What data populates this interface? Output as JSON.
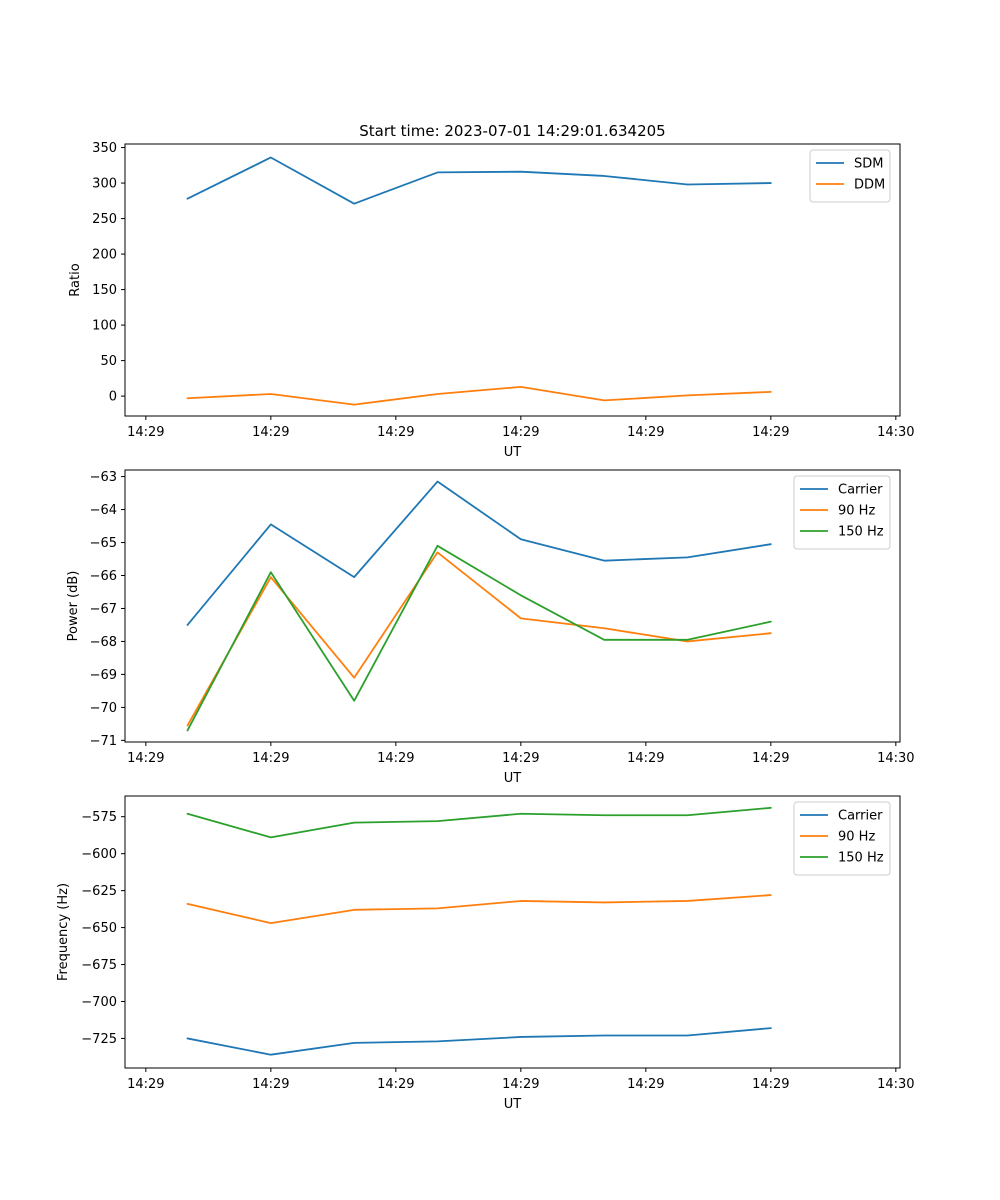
{
  "chart_data": [
    {
      "type": "line",
      "title": "Start time: 2023-07-01 14:29:01.634205",
      "xlabel": "UT",
      "ylabel": "Ratio",
      "xlim": [
        -0.75,
        8.55
      ],
      "ylim": [
        -28,
        355
      ],
      "x": [
        0,
        1,
        2,
        3,
        4,
        5,
        6,
        7
      ],
      "xticks": [
        -0.5,
        1,
        2.5,
        4,
        5.5,
        7,
        8.5
      ],
      "xtick_labels": [
        "14:29",
        "14:29",
        "14:29",
        "14:29",
        "14:29",
        "14:29",
        "14:30"
      ],
      "yticks": [
        0,
        50,
        100,
        150,
        200,
        250,
        300,
        350
      ],
      "ytick_labels": [
        "0",
        "50",
        "100",
        "150",
        "200",
        "250",
        "300",
        "350"
      ],
      "legend": "top-right",
      "series": [
        {
          "name": "SDM",
          "color": "#1f77b4",
          "values": [
            278,
            336,
            271,
            315,
            316,
            310,
            298,
            300
          ]
        },
        {
          "name": "DDM",
          "color": "#ff7f0e",
          "values": [
            -3,
            3,
            -12,
            3,
            13,
            -6,
            1,
            6
          ]
        }
      ]
    },
    {
      "type": "line",
      "title": "",
      "xlabel": "UT",
      "ylabel": "Power (dB)",
      "xlim": [
        -0.75,
        8.55
      ],
      "ylim": [
        -71.05,
        -62.8
      ],
      "x": [
        0,
        1,
        2,
        3,
        4,
        5,
        6,
        7
      ],
      "xticks": [
        -0.5,
        1,
        2.5,
        4,
        5.5,
        7,
        8.5
      ],
      "xtick_labels": [
        "14:29",
        "14:29",
        "14:29",
        "14:29",
        "14:29",
        "14:29",
        "14:30"
      ],
      "yticks": [
        -71,
        -70,
        -69,
        -68,
        -67,
        -66,
        -65,
        -64,
        -63
      ],
      "ytick_labels": [
        "−71",
        "−70",
        "−69",
        "−68",
        "−67",
        "−66",
        "−65",
        "−64",
        "−63"
      ],
      "legend": "top-right",
      "series": [
        {
          "name": "Carrier",
          "color": "#1f77b4",
          "values": [
            -67.5,
            -64.45,
            -66.05,
            -63.15,
            -64.9,
            -65.55,
            -65.45,
            -65.05
          ]
        },
        {
          "name": "90 Hz",
          "color": "#ff7f0e",
          "values": [
            -70.55,
            -66.05,
            -69.1,
            -65.3,
            -67.3,
            -67.6,
            -68.0,
            -67.75
          ]
        },
        {
          "name": "150 Hz",
          "color": "#2ca02c",
          "values": [
            -70.7,
            -65.9,
            -69.8,
            -65.1,
            -66.6,
            -67.95,
            -67.95,
            -67.4
          ]
        }
      ]
    },
    {
      "type": "line",
      "title": "",
      "xlabel": "UT",
      "ylabel": "Frequency (Hz)",
      "xlim": [
        -0.75,
        8.55
      ],
      "ylim": [
        -745,
        -561
      ],
      "x": [
        0,
        1,
        2,
        3,
        4,
        5,
        6,
        7
      ],
      "xticks": [
        -0.5,
        1,
        2.5,
        4,
        5.5,
        7,
        8.5
      ],
      "xtick_labels": [
        "14:29",
        "14:29",
        "14:29",
        "14:29",
        "14:29",
        "14:29",
        "14:30"
      ],
      "yticks": [
        -725,
        -700,
        -675,
        -650,
        -625,
        -600,
        -575
      ],
      "ytick_labels": [
        "−725",
        "−700",
        "−675",
        "−650",
        "−625",
        "−600",
        "−575"
      ],
      "legend": "top-right",
      "series": [
        {
          "name": "Carrier",
          "color": "#1f77b4",
          "values": [
            -725,
            -736,
            -728,
            -727,
            -724,
            -723,
            -723,
            -718
          ]
        },
        {
          "name": "90 Hz",
          "color": "#ff7f0e",
          "values": [
            -634,
            -647,
            -638,
            -637,
            -632,
            -633,
            -632,
            -628
          ]
        },
        {
          "name": "150 Hz",
          "color": "#2ca02c",
          "values": [
            -573,
            -589,
            -579,
            -578,
            -573,
            -574,
            -574,
            -569
          ]
        }
      ]
    }
  ]
}
